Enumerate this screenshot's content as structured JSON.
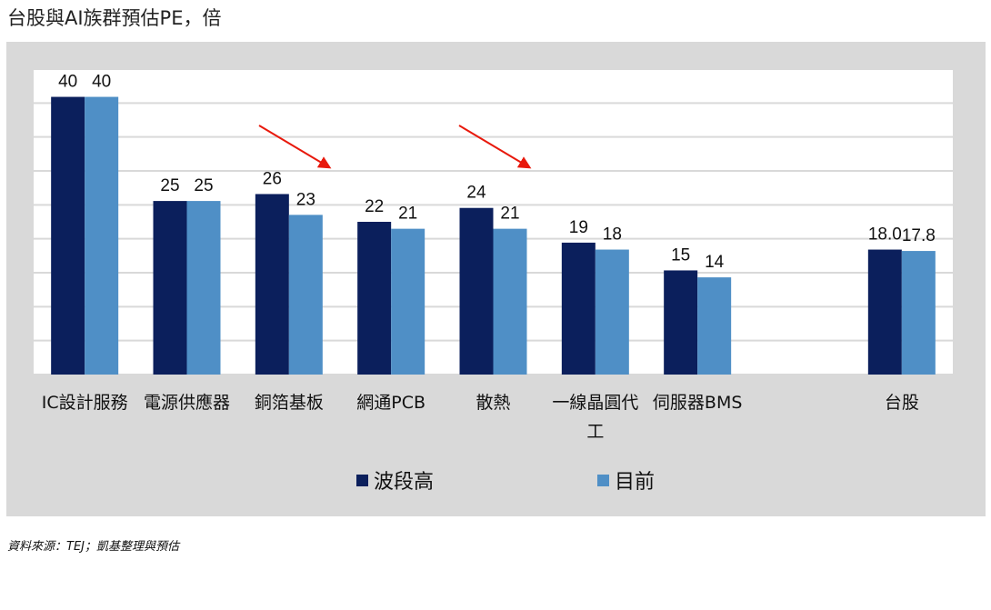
{
  "page_title": "台股與AI族群預估PE，倍",
  "source_note": "資料來源：TEJ；凱基整理與預估",
  "colors": {
    "series_high": "#0b1f5c",
    "series_current": "#4f8fc6",
    "panel_bg": "#d9d9d9",
    "plot_bg": "#ffffff",
    "grid": "#d9d9d9",
    "arrow": "#e8190c"
  },
  "chart_data": {
    "type": "bar",
    "title": "台股與AI族群預估PE，倍",
    "xlabel": "",
    "ylabel": "",
    "ylim": [
      0,
      44
    ],
    "grid": true,
    "legend": "bottom",
    "categories": [
      "IC設計服務",
      "電源供應器",
      "銅箔基板",
      "網通PCB",
      "散熱",
      "一線晶圓代工",
      "伺服器BMS",
      "",
      "台股"
    ],
    "series": [
      {
        "name": "波段高",
        "values": [
          40,
          25,
          26,
          22,
          24,
          19,
          15,
          null,
          18.0
        ],
        "labels": [
          "40",
          "25",
          "26",
          "22",
          "24",
          "19",
          "15",
          "",
          "18.0"
        ]
      },
      {
        "name": "目前",
        "values": [
          40,
          25,
          23,
          21,
          21,
          18,
          14,
          null,
          17.8
        ],
        "labels": [
          "40",
          "25",
          "23",
          "21",
          "21",
          "18",
          "14",
          "",
          "17.8"
        ]
      }
    ],
    "annotations": [
      "red-arrow",
      "red-arrow"
    ]
  }
}
